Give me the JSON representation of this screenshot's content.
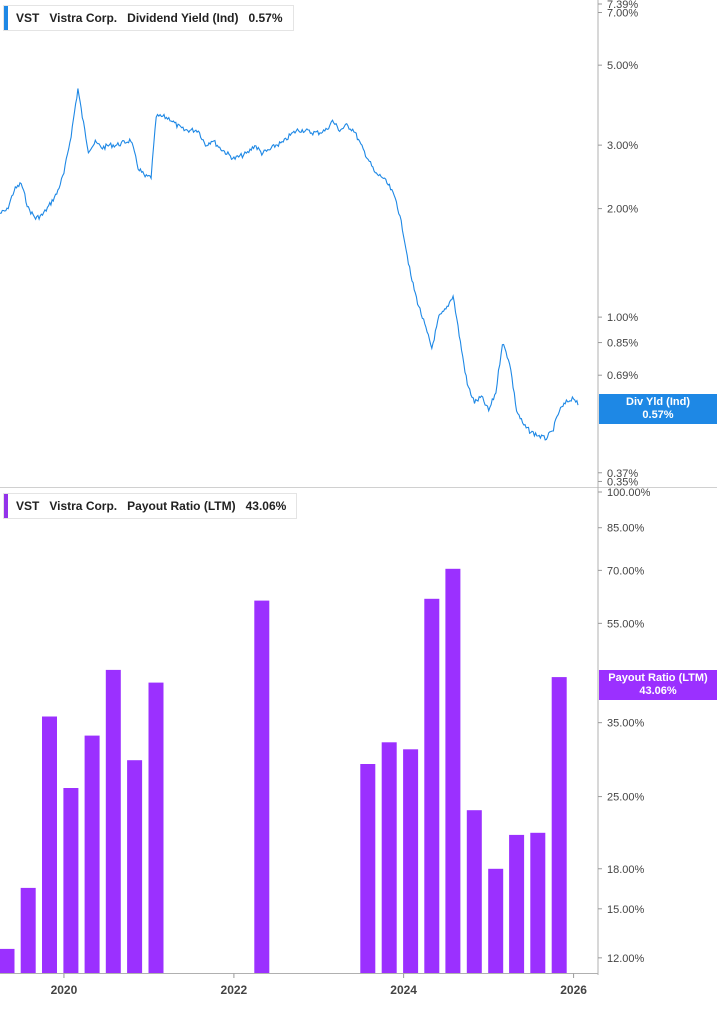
{
  "legend_top": {
    "ticker": "VST",
    "company": "Vistra Corp.",
    "metric": "Dividend Yield (Ind)",
    "value": "0.57%",
    "color": "#1e88e5"
  },
  "legend_bottom": {
    "ticker": "VST",
    "company": "Vistra Corp.",
    "metric": "Payout Ratio (LTM)",
    "value": "43.06%",
    "color": "#9333ea"
  },
  "tag_top": {
    "label": "Div Yld (Ind)",
    "value": "0.57%"
  },
  "tag_bottom": {
    "label": "Payout Ratio (LTM)",
    "value": "43.06%"
  },
  "chart_data": [
    {
      "type": "line",
      "series": [
        {
          "name": "Dividend Yield (Ind)",
          "color": "#1e88e5",
          "points": [
            [
              "2019-04-01",
              1.94
            ],
            [
              "2019-05-01",
              1.98
            ],
            [
              "2019-06-01",
              2.25
            ],
            [
              "2019-07-01",
              2.35
            ],
            [
              "2019-08-01",
              2.0
            ],
            [
              "2019-09-01",
              1.88
            ],
            [
              "2019-10-01",
              1.92
            ],
            [
              "2019-11-01",
              2.05
            ],
            [
              "2019-12-01",
              2.2
            ],
            [
              "2020-01-01",
              2.5
            ],
            [
              "2020-02-01",
              3.2
            ],
            [
              "2020-03-01",
              4.3
            ],
            [
              "2020-03-20",
              3.6
            ],
            [
              "2020-04-15",
              2.9
            ],
            [
              "2020-05-15",
              3.05
            ],
            [
              "2020-06-15",
              2.95
            ],
            [
              "2020-07-15",
              3.0
            ],
            [
              "2020-08-15",
              3.0
            ],
            [
              "2020-09-15",
              3.05
            ],
            [
              "2020-10-15",
              3.1
            ],
            [
              "2020-11-15",
              2.6
            ],
            [
              "2020-12-15",
              2.45
            ],
            [
              "2021-01-10",
              2.45
            ],
            [
              "2021-02-01",
              3.6
            ],
            [
              "2021-03-01",
              3.6
            ],
            [
              "2021-04-01",
              3.55
            ],
            [
              "2021-05-01",
              3.4
            ],
            [
              "2021-06-01",
              3.3
            ],
            [
              "2021-07-01",
              3.3
            ],
            [
              "2021-08-01",
              3.3
            ],
            [
              "2021-09-01",
              3.0
            ],
            [
              "2021-10-01",
              3.1
            ],
            [
              "2021-11-01",
              2.95
            ],
            [
              "2021-12-01",
              2.85
            ],
            [
              "2022-01-01",
              2.75
            ],
            [
              "2022-02-01",
              2.8
            ],
            [
              "2022-03-01",
              2.85
            ],
            [
              "2022-04-01",
              3.0
            ],
            [
              "2022-05-01",
              2.85
            ],
            [
              "2022-06-01",
              2.9
            ],
            [
              "2022-07-01",
              3.0
            ],
            [
              "2022-08-01",
              3.05
            ],
            [
              "2022-09-01",
              3.2
            ],
            [
              "2022-10-01",
              3.3
            ],
            [
              "2022-11-01",
              3.3
            ],
            [
              "2022-12-01",
              3.25
            ],
            [
              "2023-01-01",
              3.25
            ],
            [
              "2023-02-01",
              3.3
            ],
            [
              "2023-03-01",
              3.5
            ],
            [
              "2023-04-01",
              3.3
            ],
            [
              "2023-05-01",
              3.4
            ],
            [
              "2023-06-01",
              3.3
            ],
            [
              "2023-07-01",
              3.0
            ],
            [
              "2023-08-01",
              2.75
            ],
            [
              "2023-09-01",
              2.5
            ],
            [
              "2023-10-01",
              2.45
            ],
            [
              "2023-11-01",
              2.3
            ],
            [
              "2023-12-01",
              2.1
            ],
            [
              "2024-01-01",
              1.7
            ],
            [
              "2024-02-01",
              1.3
            ],
            [
              "2024-03-01",
              1.1
            ],
            [
              "2024-04-01",
              0.95
            ],
            [
              "2024-05-01",
              0.82
            ],
            [
              "2024-06-01",
              1.0
            ],
            [
              "2024-07-01",
              1.05
            ],
            [
              "2024-08-01",
              1.15
            ],
            [
              "2024-09-01",
              0.85
            ],
            [
              "2024-10-01",
              0.65
            ],
            [
              "2024-11-01",
              0.58
            ],
            [
              "2024-12-01",
              0.6
            ],
            [
              "2025-01-01",
              0.55
            ],
            [
              "2025-02-01",
              0.62
            ],
            [
              "2025-03-01",
              0.85
            ],
            [
              "2025-04-01",
              0.75
            ],
            [
              "2025-05-01",
              0.55
            ],
            [
              "2025-06-01",
              0.5
            ],
            [
              "2025-07-01",
              0.48
            ],
            [
              "2025-08-01",
              0.47
            ],
            [
              "2025-09-01",
              0.46
            ],
            [
              "2025-10-01",
              0.48
            ],
            [
              "2025-11-01",
              0.55
            ],
            [
              "2025-12-01",
              0.58
            ],
            [
              "2026-01-01",
              0.6
            ],
            [
              "2026-01-20",
              0.57
            ]
          ]
        }
      ],
      "yscale": "log",
      "ylim": [
        0.34,
        7.39
      ],
      "yticks": [
        {
          "value": 7.39,
          "label": "7.39%"
        },
        {
          "value": 7.0,
          "label": "7.00%"
        },
        {
          "value": 5.0,
          "label": "5.00%"
        },
        {
          "value": 3.0,
          "label": "3.00%"
        },
        {
          "value": 2.0,
          "label": "2.00%"
        },
        {
          "value": 1.0,
          "label": "1.00%"
        },
        {
          "value": 0.85,
          "label": "0.85%"
        },
        {
          "value": 0.69,
          "label": "0.69%"
        },
        {
          "value": 0.37,
          "label": "0.37%"
        },
        {
          "value": 0.35,
          "label": "0.35%"
        }
      ],
      "legend": "top-left",
      "grid": false
    },
    {
      "type": "bar",
      "series": [
        {
          "name": "Payout Ratio (LTM)",
          "color": "#9b30ff",
          "points": [
            [
              "2019-04-01",
              12.5
            ],
            [
              "2019-07-01",
              16.5
            ],
            [
              "2019-10-01",
              36.0
            ],
            [
              "2020-01-01",
              26.0
            ],
            [
              "2020-04-01",
              33.0
            ],
            [
              "2020-07-01",
              44.5
            ],
            [
              "2020-10-01",
              29.5
            ],
            [
              "2021-01-01",
              42.0
            ],
            [
              "2022-04-01",
              61.0
            ],
            [
              "2023-07-01",
              29.0
            ],
            [
              "2023-10-01",
              32.0
            ],
            [
              "2024-01-01",
              31.0
            ],
            [
              "2024-04-01",
              61.5
            ],
            [
              "2024-07-01",
              70.5
            ],
            [
              "2024-10-01",
              23.5
            ],
            [
              "2025-01-01",
              18.0
            ],
            [
              "2025-04-01",
              21.0
            ],
            [
              "2025-07-01",
              21.2
            ],
            [
              "2025-10-01",
              43.06
            ]
          ]
        }
      ],
      "yscale": "log",
      "ylim": [
        11.2,
        100
      ],
      "yticks": [
        {
          "value": 100,
          "label": "100.00%"
        },
        {
          "value": 85,
          "label": "85.00%"
        },
        {
          "value": 70,
          "label": "70.00%"
        },
        {
          "value": 55,
          "label": "55.00%"
        },
        {
          "value": 35,
          "label": "35.00%"
        },
        {
          "value": 25,
          "label": "25.00%"
        },
        {
          "value": 18,
          "label": "18.00%"
        },
        {
          "value": 15,
          "label": "15.00%"
        },
        {
          "value": 12,
          "label": "12.00%"
        }
      ],
      "xticks": [
        {
          "date": "2020-01-01",
          "label": "2020"
        },
        {
          "date": "2022-01-01",
          "label": "2022"
        },
        {
          "date": "2024-01-01",
          "label": "2024"
        },
        {
          "date": "2026-01-01",
          "label": "2026"
        }
      ],
      "legend": "top-left",
      "grid": false
    }
  ]
}
